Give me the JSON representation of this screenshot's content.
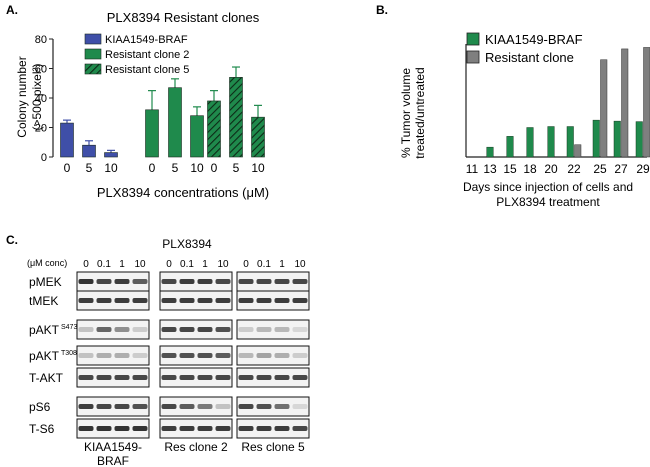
{
  "panels": {
    "a": "A.",
    "b": "B.",
    "c": "C."
  },
  "chart_data": [
    {
      "type": "bar",
      "title": "PLX8394 Resistant clones",
      "xlabel": "PLX8394 concentrations (μM)",
      "ylabel_line1": "Colony number",
      "ylabel_line2": "(>500 pixel²)",
      "ylim": [
        0,
        80
      ],
      "yticks": [
        "0",
        "20",
        "40",
        "60",
        "80"
      ],
      "categories": [
        "0",
        "5",
        "10",
        "0",
        "5",
        "10",
        "0",
        "5",
        "10"
      ],
      "values": [
        23,
        8,
        3,
        32,
        47,
        28,
        38,
        54,
        27
      ],
      "errors": [
        2,
        3,
        1.5,
        13,
        6,
        6,
        7,
        7,
        8
      ],
      "groups": [
        0,
        0,
        0,
        1,
        1,
        1,
        2,
        2,
        2
      ],
      "series": [
        {
          "name": "KIAA1549-BRAF",
          "color": "#3f4fa8",
          "hatch": false
        },
        {
          "name": "Resistant clone 2",
          "color": "#1f8a4c",
          "hatch": false
        },
        {
          "name": "Resistant clone 5",
          "color": "#1f8a4c",
          "hatch": true
        }
      ]
    },
    {
      "type": "bar",
      "ylabel_line1": "% Tumor volume",
      "ylabel_line2": "treated/untreated",
      "xlabel_line1": "Days since injection of cells and",
      "xlabel_line2": "PLX8394 treatment",
      "ylim": [
        0,
        2.3
      ],
      "categories": [
        "11",
        "13",
        "15",
        "18",
        "20",
        "22",
        "25",
        "27",
        "29"
      ],
      "series": [
        {
          "name": "KIAA1549-BRAF",
          "color": "#1f8a4c",
          "values": [
            0,
            0.2,
            0.42,
            0.6,
            0.62,
            0.62,
            0.75,
            0.73,
            0.72
          ]
        },
        {
          "name": "Resistant clone",
          "color": "#7f7f7f",
          "values": [
            null,
            null,
            null,
            null,
            null,
            0.25,
            1.98,
            2.2,
            2.23
          ]
        }
      ]
    }
  ],
  "western": {
    "treatment": "PLX8394",
    "conc_label": "(μM conc)",
    "concs": [
      "0",
      "0.1",
      "1",
      "10"
    ],
    "rows": [
      {
        "label": "pMEK",
        "sup": ""
      },
      {
        "label": "tMEK",
        "sup": ""
      },
      {
        "label": "pAKT",
        "sup": "S473"
      },
      {
        "label": "pAKT",
        "sup": "T308"
      },
      {
        "label": "T-AKT",
        "sup": ""
      },
      {
        "label": "pS6",
        "sup": ""
      },
      {
        "label": "T-S6",
        "sup": ""
      }
    ],
    "groups": [
      {
        "line1": "KIAA1549-",
        "line2": "BRAF",
        "intensity": [
          [
            0.9,
            0.8,
            0.85,
            0.7
          ],
          [
            0.85,
            0.85,
            0.85,
            0.85
          ],
          [
            0.2,
            0.65,
            0.45,
            0.15
          ],
          [
            0.2,
            0.3,
            0.3,
            0.15
          ],
          [
            0.8,
            0.8,
            0.8,
            0.8
          ],
          [
            0.85,
            0.8,
            0.8,
            0.75
          ],
          [
            0.9,
            0.9,
            0.9,
            0.9
          ]
        ]
      },
      {
        "line1": "Res clone 2",
        "line2": "",
        "intensity": [
          [
            0.8,
            0.85,
            0.85,
            0.8
          ],
          [
            0.85,
            0.85,
            0.85,
            0.85
          ],
          [
            0.8,
            0.8,
            0.8,
            0.75
          ],
          [
            0.75,
            0.75,
            0.75,
            0.7
          ],
          [
            0.8,
            0.8,
            0.8,
            0.8
          ],
          [
            0.8,
            0.7,
            0.55,
            0.2
          ],
          [
            0.85,
            0.85,
            0.85,
            0.85
          ]
        ]
      },
      {
        "line1": "Res clone 5",
        "line2": "",
        "intensity": [
          [
            0.8,
            0.8,
            0.8,
            0.8
          ],
          [
            0.85,
            0.85,
            0.85,
            0.85
          ],
          [
            0.15,
            0.25,
            0.25,
            0.1
          ],
          [
            0.25,
            0.35,
            0.3,
            0.15
          ],
          [
            0.8,
            0.8,
            0.8,
            0.8
          ],
          [
            0.8,
            0.75,
            0.6,
            0.1
          ],
          [
            0.85,
            0.85,
            0.85,
            0.8
          ]
        ]
      }
    ]
  }
}
